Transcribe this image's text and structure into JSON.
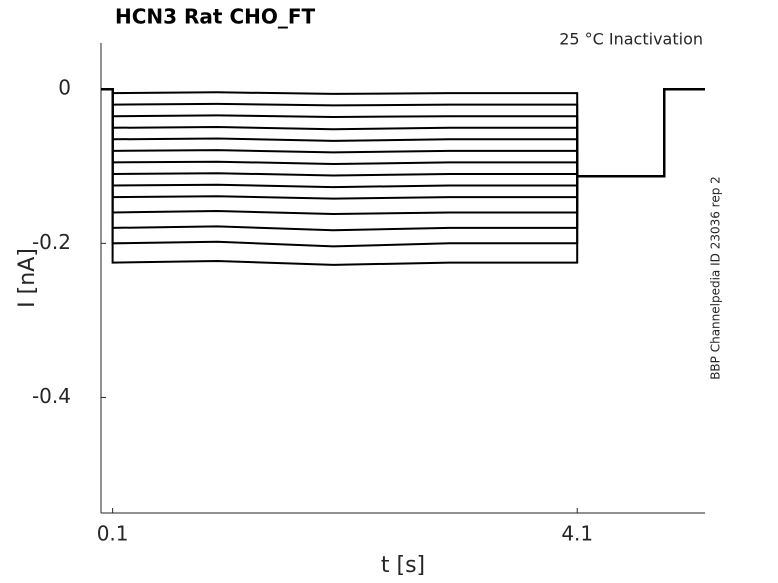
{
  "chart_data": {
    "type": "line",
    "title": "HCN3  Rat  CHO_FT",
    "annotation": "25 °C  Inactivation",
    "side_note": "BBP Channelpedia ID 23036 rep 2",
    "x_label": "t [s]",
    "y_label": "I [nA]",
    "xlim": [
      0,
      5.2
    ],
    "ylim": [
      -0.55,
      0.06
    ],
    "xticks": [
      0.1,
      4.1
    ],
    "yticks": [
      0,
      -0.2,
      -0.4
    ],
    "x": [
      0,
      0.1,
      0.1,
      1,
      2,
      3,
      4.1,
      4.1,
      4.85,
      4.85,
      5.2
    ],
    "series": [
      {
        "color": "#000000",
        "values": [
          0,
          0,
          -0.005,
          -0.004,
          -0.006,
          -0.005,
          -0.005,
          -0.113,
          -0.113,
          0,
          0
        ]
      },
      {
        "color": "#000000",
        "values": [
          0,
          0,
          -0.02,
          -0.019,
          -0.021,
          -0.02,
          -0.02,
          -0.113,
          -0.113,
          0,
          0
        ]
      },
      {
        "color": "#000000",
        "values": [
          0,
          0,
          -0.035,
          -0.034,
          -0.036,
          -0.035,
          -0.035,
          -0.113,
          -0.113,
          0,
          0
        ]
      },
      {
        "color": "#000000",
        "values": [
          0,
          0,
          -0.05,
          -0.049,
          -0.052,
          -0.05,
          -0.05,
          -0.113,
          -0.113,
          0,
          0
        ]
      },
      {
        "color": "#000000",
        "values": [
          0,
          0,
          -0.065,
          -0.064,
          -0.067,
          -0.065,
          -0.065,
          -0.113,
          -0.113,
          0,
          0
        ]
      },
      {
        "color": "#000000",
        "values": [
          0,
          0,
          -0.08,
          -0.079,
          -0.082,
          -0.08,
          -0.08,
          -0.113,
          -0.113,
          0,
          0
        ]
      },
      {
        "color": "#000000",
        "values": [
          0,
          0,
          -0.095,
          -0.094,
          -0.097,
          -0.095,
          -0.095,
          -0.113,
          -0.113,
          0,
          0
        ]
      },
      {
        "color": "#000000",
        "values": [
          0,
          0,
          -0.11,
          -0.109,
          -0.112,
          -0.11,
          -0.11,
          -0.113,
          -0.113,
          0,
          0
        ]
      },
      {
        "color": "#000000",
        "values": [
          0,
          0,
          -0.125,
          -0.124,
          -0.127,
          -0.125,
          -0.125,
          -0.113,
          -0.113,
          0,
          0
        ]
      },
      {
        "color": "#000000",
        "values": [
          0,
          0,
          -0.14,
          -0.139,
          -0.142,
          -0.14,
          -0.14,
          -0.113,
          -0.113,
          0,
          0
        ]
      },
      {
        "color": "#000000",
        "values": [
          0,
          0,
          -0.16,
          -0.158,
          -0.162,
          -0.16,
          -0.16,
          -0.113,
          -0.113,
          0,
          0
        ]
      },
      {
        "color": "#000000",
        "values": [
          0,
          0,
          -0.18,
          -0.178,
          -0.183,
          -0.18,
          -0.18,
          -0.113,
          -0.113,
          0,
          0
        ]
      },
      {
        "color": "#000000",
        "values": [
          0,
          0,
          -0.2,
          -0.198,
          -0.204,
          -0.2,
          -0.2,
          -0.113,
          -0.113,
          0,
          0
        ]
      },
      {
        "color": "#000000",
        "values": [
          0,
          0,
          -0.225,
          -0.223,
          -0.228,
          -0.225,
          -0.225,
          -0.113,
          -0.113,
          0,
          0
        ]
      }
    ]
  }
}
